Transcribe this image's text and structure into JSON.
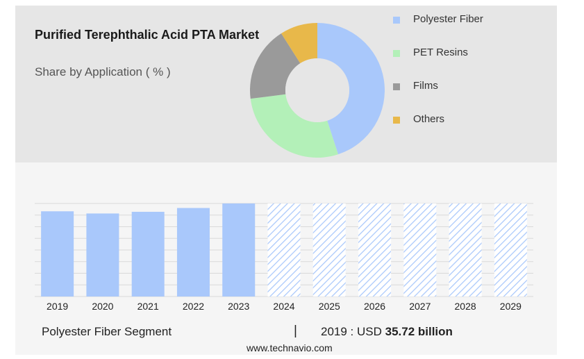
{
  "header": {
    "title": "Purified Terephthalic Acid PTA Market",
    "subtitle": "Share by Application ( % )"
  },
  "chart_data": [
    {
      "type": "pie",
      "subtype": "donut",
      "series": [
        {
          "name": "Polyester Fiber",
          "value": 45,
          "color": "#a9c8fb"
        },
        {
          "name": "PET Resins",
          "value": 28,
          "color": "#b3f0b8"
        },
        {
          "name": "Films",
          "value": 18,
          "color": "#9a9a9a"
        },
        {
          "name": "Others",
          "value": 9,
          "color": "#e8b84a"
        }
      ],
      "legend": "right"
    },
    {
      "type": "bar",
      "categories": [
        "2019",
        "2020",
        "2021",
        "2022",
        "2023",
        "2024",
        "2025",
        "2026",
        "2027",
        "2028",
        "2029"
      ],
      "values": [
        35.72,
        34.8,
        35.5,
        37.1,
        39.0,
        39.0,
        39.0,
        39.0,
        39.0,
        39.0,
        39.0
      ],
      "forecast_from": "2024",
      "ylim": [
        0,
        39.0
      ],
      "grid": true,
      "bar_color": "#a9c8fb",
      "forecast_style": "hatched"
    }
  ],
  "footer": {
    "segment_label": "Polyester Fiber Segment",
    "divider": "|",
    "value_prefix": "2019 : USD ",
    "value": "35.72 billion",
    "source": "www.technavio.com"
  }
}
